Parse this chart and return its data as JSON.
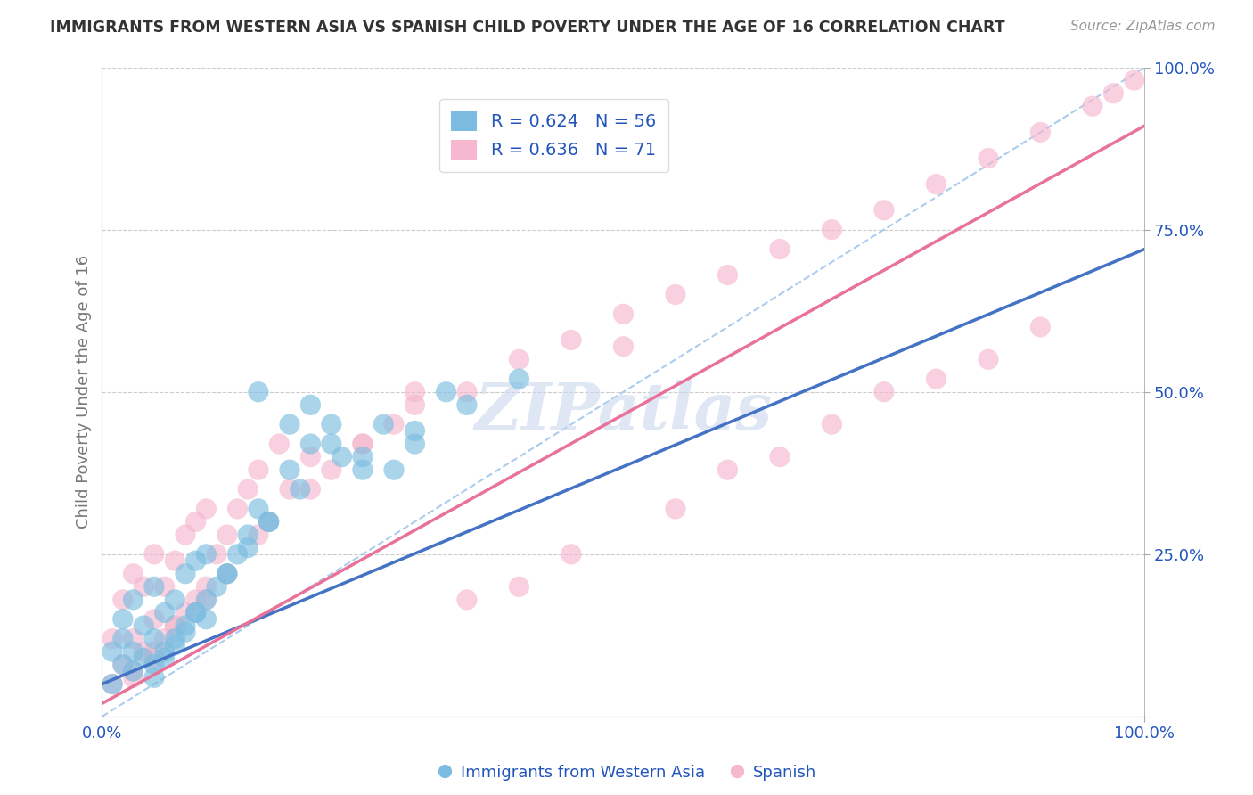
{
  "title": "IMMIGRANTS FROM WESTERN ASIA VS SPANISH CHILD POVERTY UNDER THE AGE OF 16 CORRELATION CHART",
  "source": "Source: ZipAtlas.com",
  "ylabel": "Child Poverty Under the Age of 16",
  "watermark_text": "ZIPatlas",
  "blue_label": "Immigrants from Western Asia",
  "pink_label": "Spanish",
  "blue_R": 0.624,
  "blue_N": 56,
  "pink_R": 0.636,
  "pink_N": 71,
  "blue_color": "#7bbde0",
  "pink_color": "#f5b8ce",
  "blue_line_color": "#4472c4",
  "pink_line_color": "#e8729a",
  "title_color": "#333333",
  "legend_text_color": "#2255bb",
  "axis_label_color": "#777777",
  "tick_color": "#2255bb",
  "grid_color": "#cccccc",
  "ref_line_color": "#aaccee",
  "background_color": "#ffffff",
  "xlim": [
    0.0,
    1.0
  ],
  "ylim": [
    0.0,
    1.0
  ],
  "blue_scatter_x": [
    0.01,
    0.01,
    0.02,
    0.02,
    0.02,
    0.03,
    0.03,
    0.03,
    0.04,
    0.04,
    0.05,
    0.05,
    0.05,
    0.06,
    0.06,
    0.07,
    0.07,
    0.08,
    0.08,
    0.09,
    0.09,
    0.1,
    0.1,
    0.11,
    0.12,
    0.13,
    0.14,
    0.15,
    0.16,
    0.18,
    0.2,
    0.22,
    0.25,
    0.28,
    0.3,
    0.35,
    0.4,
    0.15,
    0.18,
    0.2,
    0.22,
    0.25,
    0.3,
    0.05,
    0.06,
    0.07,
    0.08,
    0.09,
    0.1,
    0.12,
    0.14,
    0.16,
    0.19,
    0.23,
    0.27,
    0.33
  ],
  "blue_scatter_y": [
    0.05,
    0.1,
    0.08,
    0.12,
    0.15,
    0.07,
    0.1,
    0.18,
    0.09,
    0.14,
    0.08,
    0.12,
    0.2,
    0.1,
    0.16,
    0.12,
    0.18,
    0.14,
    0.22,
    0.16,
    0.24,
    0.15,
    0.25,
    0.2,
    0.22,
    0.25,
    0.28,
    0.32,
    0.3,
    0.38,
    0.42,
    0.45,
    0.4,
    0.38,
    0.42,
    0.48,
    0.52,
    0.5,
    0.45,
    0.48,
    0.42,
    0.38,
    0.44,
    0.06,
    0.09,
    0.11,
    0.13,
    0.16,
    0.18,
    0.22,
    0.26,
    0.3,
    0.35,
    0.4,
    0.45,
    0.5
  ],
  "pink_scatter_x": [
    0.01,
    0.01,
    0.02,
    0.02,
    0.03,
    0.03,
    0.03,
    0.04,
    0.04,
    0.05,
    0.05,
    0.05,
    0.06,
    0.06,
    0.07,
    0.07,
    0.08,
    0.08,
    0.09,
    0.09,
    0.1,
    0.1,
    0.11,
    0.12,
    0.13,
    0.14,
    0.15,
    0.16,
    0.17,
    0.18,
    0.2,
    0.22,
    0.25,
    0.28,
    0.3,
    0.35,
    0.4,
    0.45,
    0.5,
    0.55,
    0.6,
    0.65,
    0.7,
    0.75,
    0.8,
    0.85,
    0.9,
    0.95,
    0.97,
    0.99,
    0.03,
    0.05,
    0.07,
    0.1,
    0.12,
    0.15,
    0.2,
    0.25,
    0.3,
    0.5,
    0.6,
    0.7,
    0.8,
    0.9,
    0.55,
    0.65,
    0.75,
    0.85,
    0.4,
    0.45,
    0.35
  ],
  "pink_scatter_y": [
    0.05,
    0.12,
    0.08,
    0.18,
    0.07,
    0.12,
    0.22,
    0.1,
    0.2,
    0.09,
    0.15,
    0.25,
    0.12,
    0.2,
    0.14,
    0.24,
    0.16,
    0.28,
    0.18,
    0.3,
    0.2,
    0.32,
    0.25,
    0.28,
    0.32,
    0.35,
    0.38,
    0.3,
    0.42,
    0.35,
    0.4,
    0.38,
    0.42,
    0.45,
    0.48,
    0.5,
    0.55,
    0.58,
    0.62,
    0.65,
    0.68,
    0.72,
    0.75,
    0.78,
    0.82,
    0.86,
    0.9,
    0.94,
    0.96,
    0.98,
    0.06,
    0.1,
    0.14,
    0.18,
    0.22,
    0.28,
    0.35,
    0.42,
    0.5,
    0.57,
    0.38,
    0.45,
    0.52,
    0.6,
    0.32,
    0.4,
    0.5,
    0.55,
    0.2,
    0.25,
    0.18
  ],
  "blue_line_x0": 0.0,
  "blue_line_y0": 0.05,
  "blue_line_x1": 1.0,
  "blue_line_y1": 0.72,
  "pink_line_x0": 0.0,
  "pink_line_y0": 0.02,
  "pink_line_x1": 1.0,
  "pink_line_y1": 0.91,
  "ytick_positions": [
    0.0,
    0.25,
    0.5,
    0.75,
    1.0
  ],
  "ytick_labels": [
    "",
    "25.0%",
    "50.0%",
    "75.0%",
    "100.0%"
  ],
  "xtick_positions": [
    0.0,
    1.0
  ],
  "xtick_labels": [
    "0.0%",
    "100.0%"
  ]
}
